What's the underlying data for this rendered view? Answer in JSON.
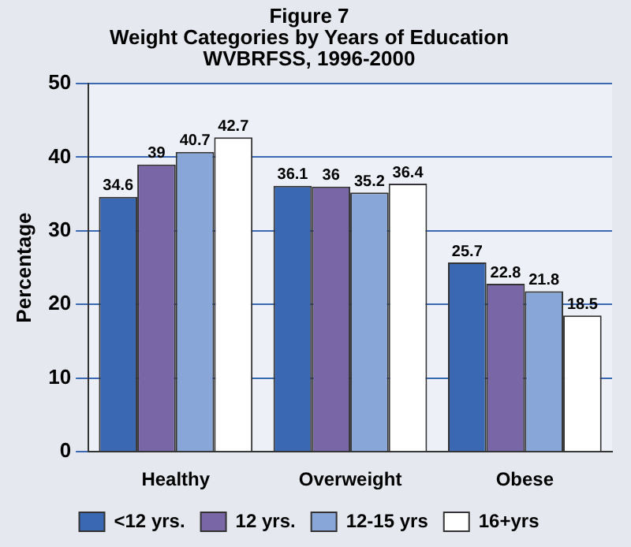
{
  "chart_data": {
    "type": "bar",
    "title": "Figure 7\nWeight Categories by Years of Education\nWVBRFSS, 1996-2000",
    "ylabel": "Percentage",
    "categories": [
      "Healthy",
      "Overweight",
      "Obese"
    ],
    "series": [
      {
        "name": "<12 yrs.",
        "color": "#3b68b2",
        "values": [
          34.6,
          36.1,
          25.7
        ]
      },
      {
        "name": "12 yrs.",
        "color": "#7866a6",
        "values": [
          39,
          36,
          22.8
        ]
      },
      {
        "name": "12-15 yrs",
        "color": "#88a6d8",
        "values": [
          40.7,
          35.2,
          21.8
        ]
      },
      {
        "name": "16+yrs",
        "color": "#ffffff",
        "values": [
          42.7,
          36.4,
          18.5
        ]
      }
    ],
    "ylim": [
      0,
      50
    ],
    "yticks": [
      0,
      10,
      20,
      30,
      40,
      50
    ],
    "grid": "y",
    "legend": "bottom",
    "data_labels": true
  }
}
